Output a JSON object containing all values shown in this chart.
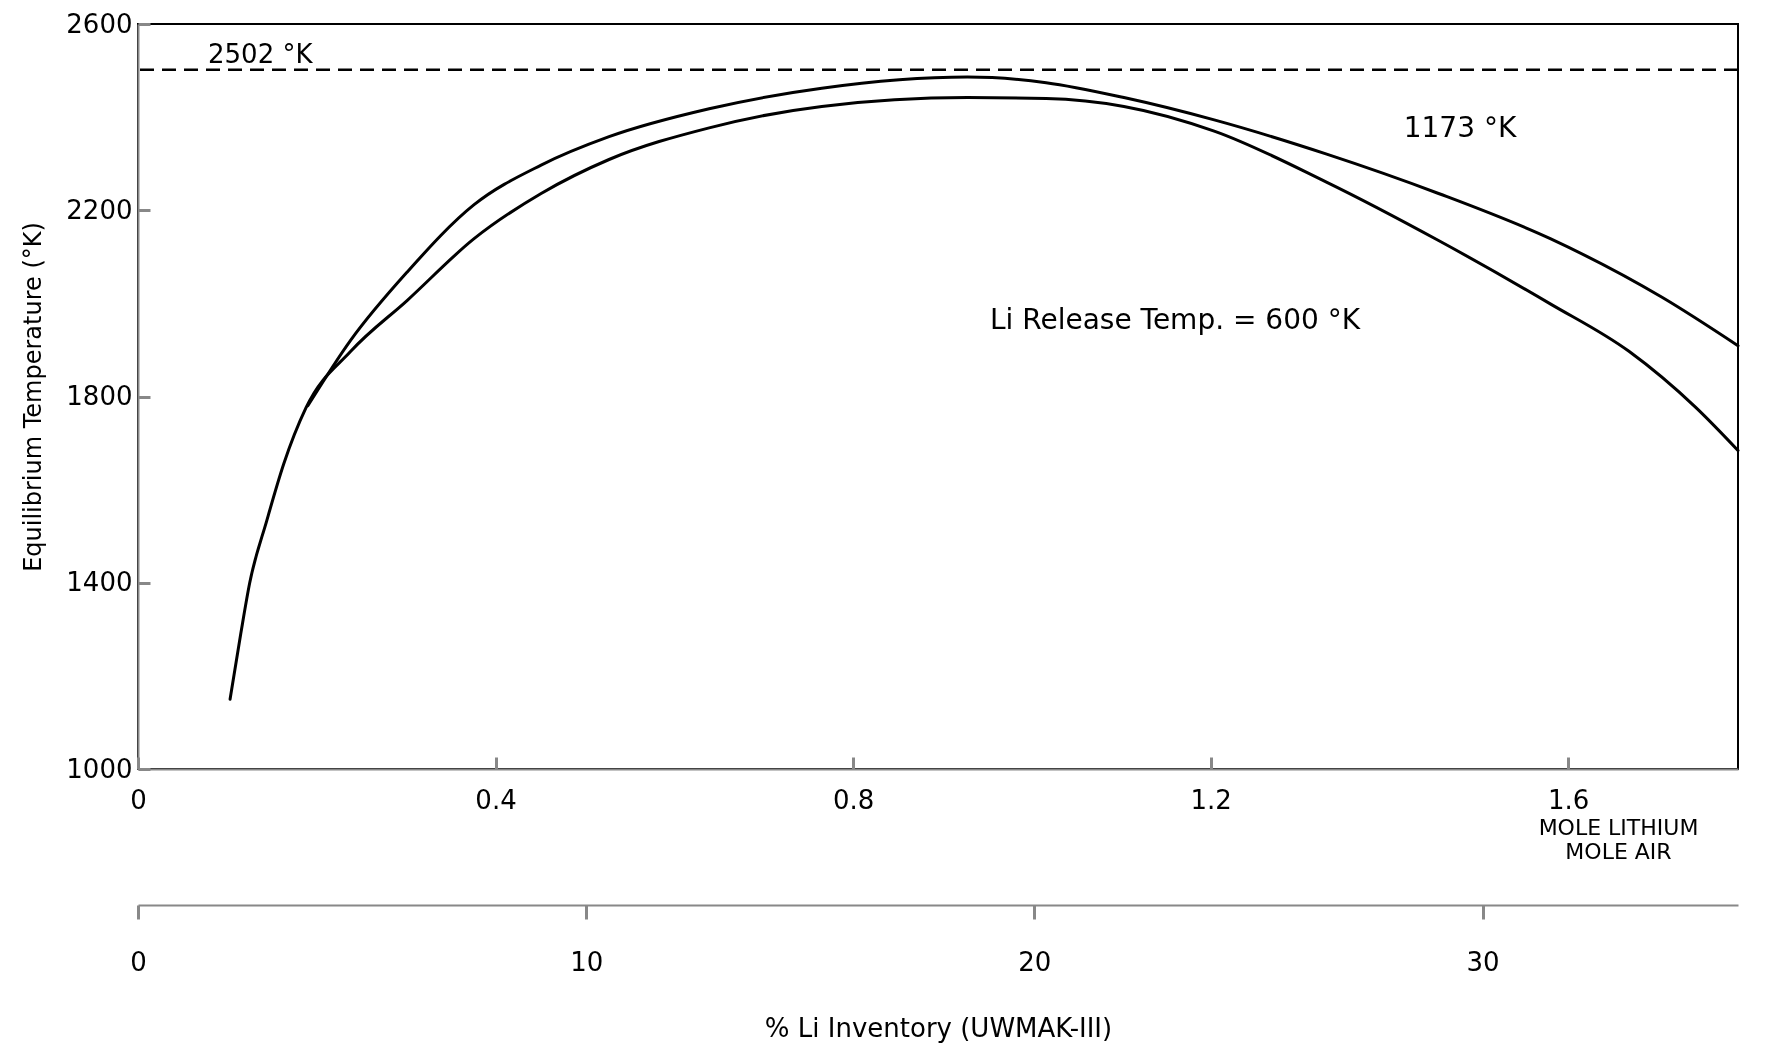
{
  "chart_data": {
    "type": "line",
    "xlabel": "MOLE LITHIUM\nMOLE AIR",
    "ylabel": "Equilibrium Temperature (°K)",
    "x2label": "% Li Inventory (UWMAK-III)",
    "xlim": [
      0,
      1.79
    ],
    "xticks": [
      0,
      0.4,
      0.8,
      1.2,
      1.6
    ],
    "ylim": [
      1000,
      2600
    ],
    "yticks": [
      1000,
      1400,
      1800,
      2200,
      2600
    ],
    "x2lim": [
      0,
      35.7
    ],
    "x2ticks": [
      0,
      10,
      20,
      30
    ],
    "grid": false,
    "legend": false,
    "series": [
      {
        "color": "#000000",
        "x": [
          0.19,
          0.238,
          0.301,
          0.376,
          0.451,
          0.527,
          0.639,
          0.765,
          0.928,
          1.016,
          1.103,
          1.204,
          1.329,
          1.455,
          1.58,
          1.705,
          1.79
        ],
        "values": [
          1780,
          1921,
          2067,
          2212,
          2297,
          2358,
          2418,
          2462,
          2486,
          2474,
          2442,
          2394,
          2321,
          2236,
          2139,
          2013,
          1909
        ]
      },
      {
        "color": "#000000",
        "x": [
          0.103,
          0.115,
          0.125,
          0.144,
          0.163,
          0.188,
          0.238,
          0.301,
          0.376,
          0.451,
          0.527,
          0.639,
          0.765,
          0.928,
          1.016,
          1.103,
          1.204,
          1.329,
          1.455,
          1.58,
          1.668,
          1.743,
          1.79
        ],
        "values": [
          1150,
          1291,
          1400,
          1533,
          1655,
          1776,
          1897,
          2006,
          2139,
          2236,
          2309,
          2377,
          2423,
          2442,
          2440,
          2423,
          2370,
          2261,
          2135,
          1999,
          1897,
          1776,
          1684
        ]
      }
    ],
    "ref_lines": [
      {
        "axis": "y",
        "value": 2502,
        "label": "2502 °K",
        "line_style": "dashed",
        "color": "#000000"
      }
    ],
    "annotations": [
      "1173 °K",
      "Li Release Temp. = 600 °K"
    ]
  }
}
